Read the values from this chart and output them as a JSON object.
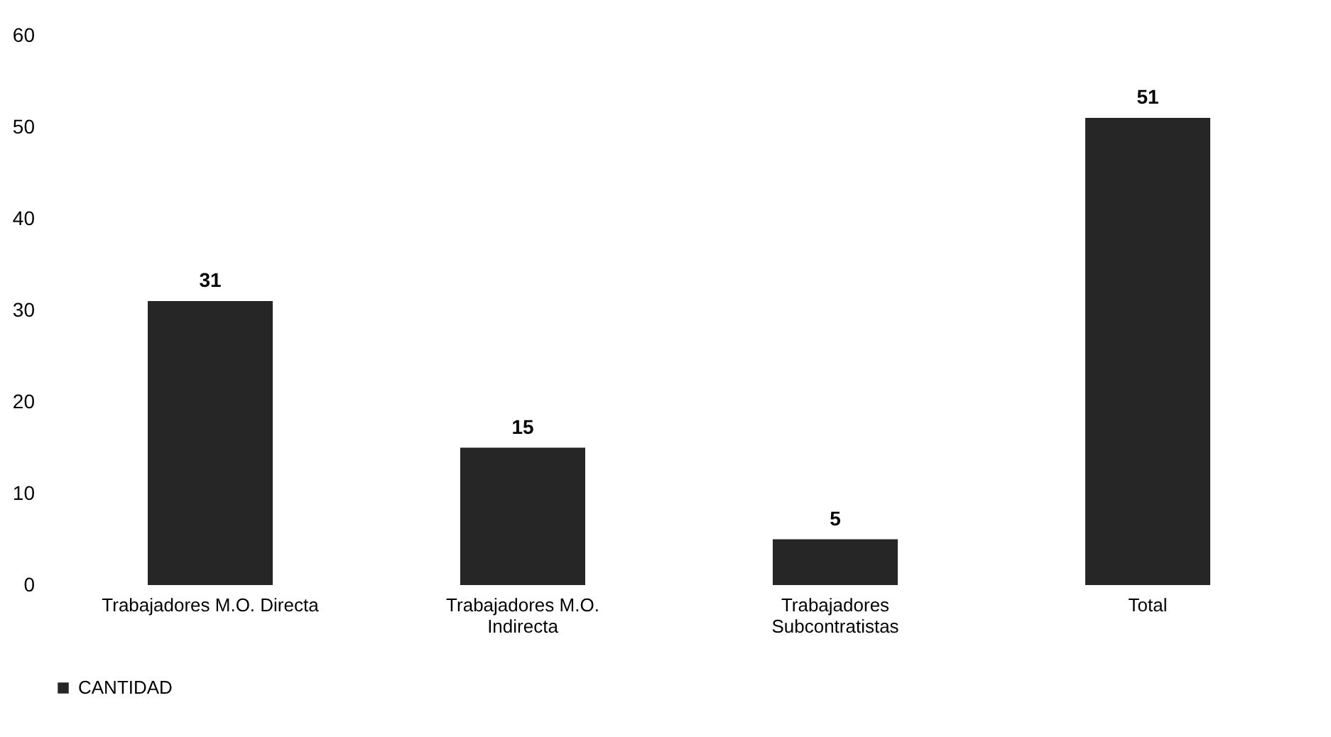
{
  "chart_data": {
    "type": "bar",
    "categories": [
      "Trabajadores M.O. Directa",
      "Trabajadores M.O. Indirecta",
      "Trabajadores Subcontratistas",
      "Total"
    ],
    "series": [
      {
        "name": "CANTIDAD",
        "color": "#262626",
        "values": [
          31,
          15,
          5,
          51
        ]
      }
    ],
    "ylim": [
      0,
      60
    ],
    "yticks": [
      0,
      10,
      20,
      30,
      40,
      50,
      60
    ],
    "data_labels": true,
    "legend": "bottom",
    "grid": false
  }
}
